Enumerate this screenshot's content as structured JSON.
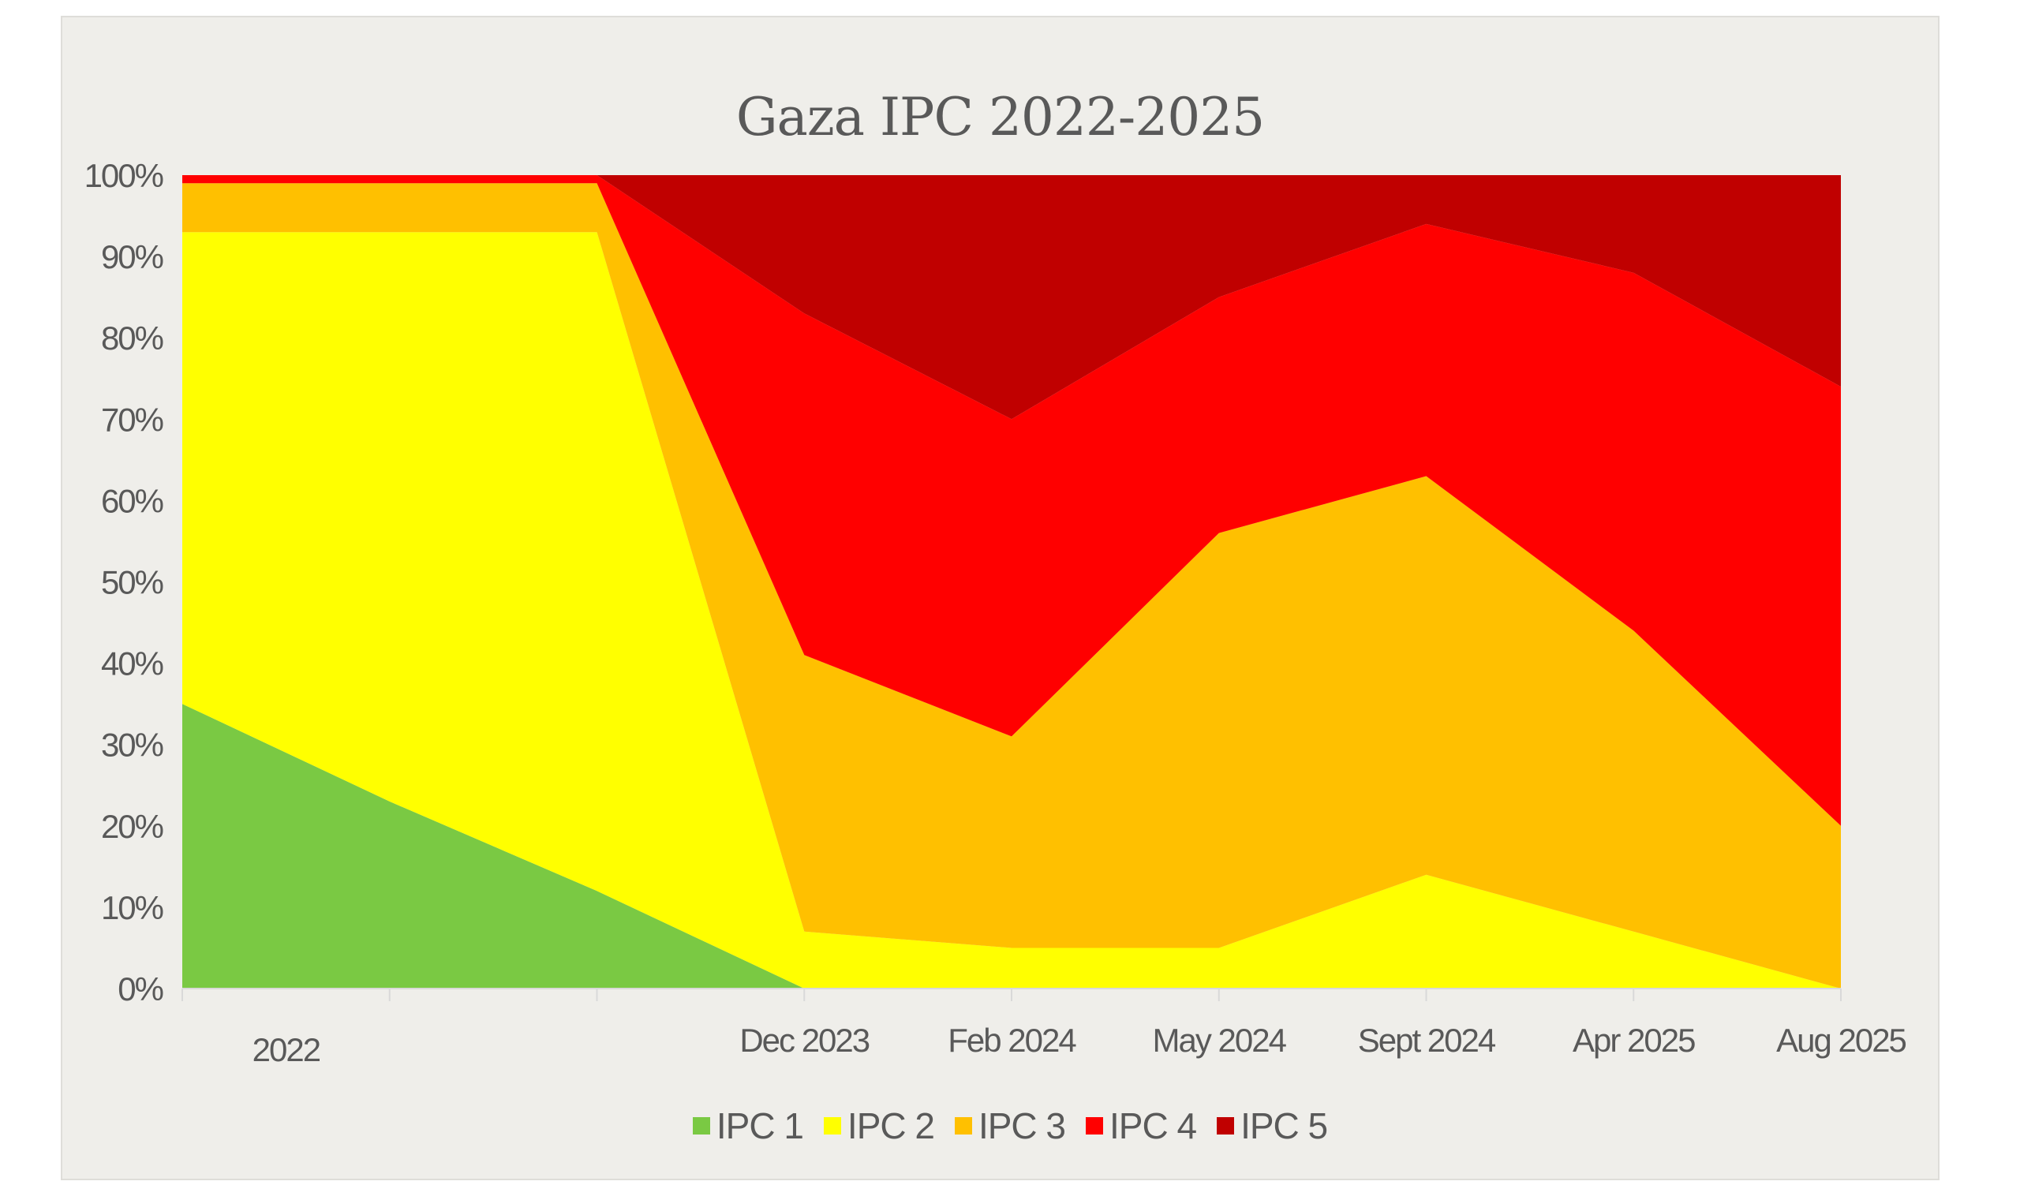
{
  "title": "Gaza IPC 2022-2025",
  "colors": {
    "background": "#EFEEEA",
    "text": "#595959",
    "IPC 1": "#7AC943",
    "IPC 2": "#FFFF00",
    "IPC 3": "#FFC000",
    "IPC 4": "#FF0000",
    "IPC 5": "#C00000"
  },
  "legend": [
    {
      "label": "IPC 1",
      "color": "#7AC943"
    },
    {
      "label": "IPC 2",
      "color": "#FFFF00"
    },
    {
      "label": "IPC 3",
      "color": "#FFC000"
    },
    {
      "label": "IPC 4",
      "color": "#FF0000"
    },
    {
      "label": "IPC 5",
      "color": "#C00000"
    }
  ],
  "y_axis": {
    "ticks": [
      "0%",
      "10%",
      "20%",
      "30%",
      "40%",
      "50%",
      "60%",
      "70%",
      "80%",
      "90%",
      "100%"
    ]
  },
  "x_axis": {
    "labels": [
      {
        "text": "2022",
        "pos": 0.5
      },
      {
        "text": "Dec 2023",
        "pos": 3
      },
      {
        "text": "Feb 2024",
        "pos": 4
      },
      {
        "text": "May 2024",
        "pos": 5
      },
      {
        "text": "Sept 2024",
        "pos": 6
      },
      {
        "text": "Apr 2025",
        "pos": 7
      },
      {
        "text": "Aug 2025",
        "pos": 8
      }
    ],
    "tick_count": 9
  },
  "chart_data": {
    "type": "area",
    "stacked": "percent",
    "title": "Gaza IPC 2022-2025",
    "xlabel": "",
    "ylabel": "",
    "ylim": [
      0,
      100
    ],
    "y_format": "percent",
    "grid": false,
    "legend_position": "bottom",
    "x": [
      "2022",
      "",
      "",
      "Dec 2023",
      "Feb 2024",
      "May 2024",
      "Sept 2024",
      "Apr 2025",
      "Aug 2025"
    ],
    "x_positions": [
      0,
      1,
      2,
      3,
      4,
      5,
      6,
      7,
      8
    ],
    "series": [
      {
        "name": "IPC 1",
        "color": "#7AC943",
        "values": [
          35,
          23,
          12,
          0,
          0,
          0,
          0,
          0,
          0
        ]
      },
      {
        "name": "IPC 2",
        "color": "#FFFF00",
        "values": [
          58,
          70,
          81,
          7,
          5,
          5,
          14,
          7,
          0
        ]
      },
      {
        "name": "IPC 3",
        "color": "#FFC000",
        "values": [
          6,
          6,
          6,
          34,
          26,
          51,
          49,
          37,
          20
        ]
      },
      {
        "name": "IPC 4",
        "color": "#FF0000",
        "values": [
          1,
          1,
          1,
          42,
          39,
          29,
          31,
          44,
          54
        ]
      },
      {
        "name": "IPC 5",
        "color": "#C00000",
        "values": [
          0,
          0,
          0,
          17,
          30,
          15,
          6,
          12,
          26
        ]
      }
    ]
  }
}
